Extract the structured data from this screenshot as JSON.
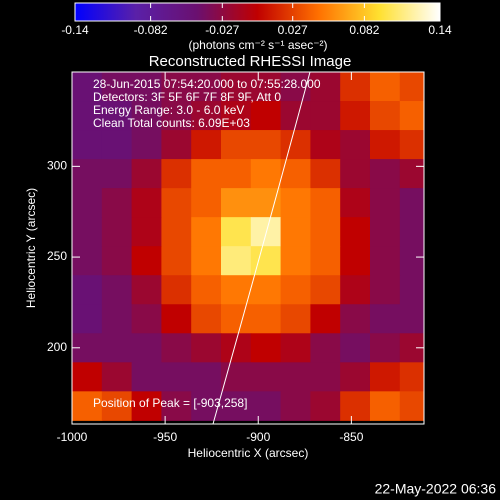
{
  "chart_data": {
    "type": "heatmap",
    "title": "Reconstructed RHESSI Image",
    "colorbar_label": "(photons cm⁻² s⁻¹ asec⁻²)",
    "xlabel": "Heliocentric X (arcsec)",
    "ylabel": "Heliocentric Y (arcsec)",
    "annotations": [
      "28-Jun-2015 07:54:20.000 to 07:55:28.000",
      "Detectors: 3F 5F 6F 7F 8F 9F, Att 0",
      "Energy Range: 3.0 - 6.0 keV",
      "Clean    Total counts: 6.09E+03"
    ],
    "peak_label": "Position of Peak = [-903,258]",
    "footer": "22-May-2022 06:36",
    "xlim": [
      -1000,
      -811
    ],
    "ylim": [
      158,
      352
    ],
    "xticks": [
      -1000,
      -950,
      -900,
      -850
    ],
    "yticks": [
      200,
      250,
      300
    ],
    "zlim": [
      -0.14,
      0.14
    ],
    "zticks": [
      -0.14,
      -0.082,
      -0.027,
      0.027,
      0.082,
      0.14
    ],
    "colorscale": [
      "#0000ff",
      "#5a20a8",
      "#6a1070",
      "#c00000",
      "#ff7000",
      "#ffe030",
      "#ffffff"
    ],
    "x": [
      -992,
      -976,
      -960,
      -944,
      -928,
      -912,
      -896,
      -880,
      -864,
      -848,
      -832,
      -816
    ],
    "y": [
      344,
      328,
      312,
      296,
      280,
      264,
      248,
      232,
      216,
      200,
      184,
      168
    ],
    "z": [
      [
        -0.05,
        -0.04,
        -0.04,
        -0.03,
        -0.03,
        -0.02,
        -0.02,
        -0.03,
        -0.02,
        0.02,
        0.04,
        0.03
      ],
      [
        -0.05,
        -0.05,
        -0.04,
        -0.03,
        -0.02,
        -0.01,
        0.0,
        -0.02,
        -0.02,
        0.01,
        0.03,
        0.04
      ],
      [
        -0.05,
        -0.05,
        -0.04,
        -0.02,
        0.01,
        0.03,
        0.03,
        0.02,
        -0.01,
        -0.02,
        0.01,
        0.02
      ],
      [
        -0.04,
        -0.04,
        -0.02,
        0.02,
        0.04,
        0.04,
        0.05,
        0.04,
        0.02,
        -0.02,
        -0.03,
        -0.02
      ],
      [
        -0.04,
        -0.03,
        -0.01,
        0.03,
        0.04,
        0.06,
        0.06,
        0.05,
        0.04,
        -0.01,
        -0.03,
        -0.04
      ],
      [
        -0.04,
        -0.03,
        -0.01,
        0.03,
        0.05,
        0.1,
        0.12,
        0.05,
        0.04,
        0.0,
        -0.03,
        -0.04
      ],
      [
        -0.04,
        -0.03,
        0.0,
        0.03,
        0.05,
        0.11,
        0.1,
        0.05,
        0.04,
        0.0,
        -0.03,
        -0.04
      ],
      [
        -0.05,
        -0.04,
        -0.02,
        0.02,
        0.04,
        0.05,
        0.05,
        0.04,
        0.03,
        -0.01,
        -0.03,
        -0.04
      ],
      [
        -0.05,
        -0.04,
        -0.03,
        0.0,
        0.03,
        0.04,
        0.04,
        0.03,
        0.0,
        -0.03,
        -0.04,
        -0.04
      ],
      [
        -0.04,
        -0.04,
        -0.04,
        -0.03,
        -0.02,
        -0.01,
        0.0,
        -0.01,
        -0.03,
        -0.04,
        -0.03,
        -0.02
      ],
      [
        0.0,
        -0.02,
        -0.04,
        -0.04,
        -0.04,
        -0.03,
        -0.03,
        -0.03,
        -0.03,
        -0.02,
        0.01,
        0.02
      ],
      [
        0.04,
        0.03,
        0.0,
        -0.03,
        -0.04,
        -0.04,
        -0.04,
        -0.03,
        -0.02,
        0.02,
        0.04,
        0.03
      ]
    ]
  }
}
